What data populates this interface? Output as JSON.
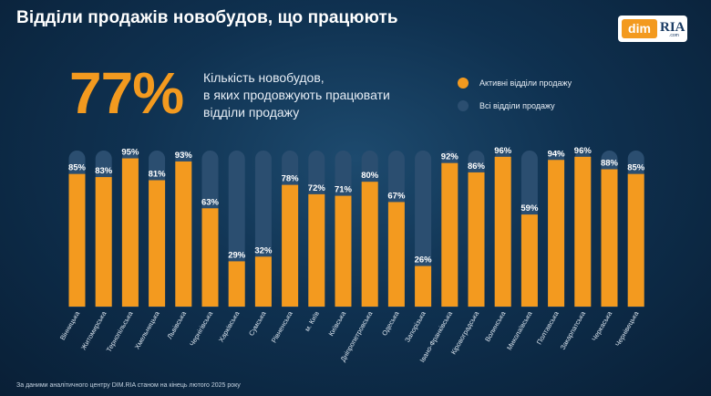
{
  "header": {
    "title": "Відділи продажів новобудов, що працюють"
  },
  "logo": {
    "dim_text": "dim",
    "ria_text": "RIA",
    "com_text": ".com"
  },
  "summary": {
    "big_value": "77%",
    "lines": [
      "Кількість новобудов,",
      "в яких продовжують працювати",
      "відділи продажу"
    ]
  },
  "colors": {
    "active": "#f39a1f",
    "all": "#2b4e70",
    "background": "#0f3150",
    "text": "#ffffff"
  },
  "chart_data": {
    "type": "bar",
    "categories": [
      "Вінницька",
      "Житомирська",
      "Тернопільська",
      "Хмельницька",
      "Львівська",
      "Чернігівська",
      "Харківська",
      "Сумська",
      "Рівненська",
      "м. Київ",
      "Київська",
      "Дніпропетровська",
      "Одеська",
      "Запорізька",
      "Івано-Франківська",
      "Кіровоградська",
      "Волинська",
      "Миколаївська",
      "Полтавська",
      "Закарпатська",
      "Черкаська",
      "Чернівецька"
    ],
    "series": [
      {
        "name": "Активні відділи продажу",
        "values": [
          85,
          83,
          95,
          81,
          93,
          63,
          29,
          32,
          78,
          72,
          71,
          80,
          67,
          26,
          92,
          86,
          96,
          59,
          94,
          96,
          88,
          85
        ],
        "labels": [
          "85%",
          "83%",
          "95%",
          "81%",
          "93%",
          "63%",
          "29%",
          "32%",
          "78%",
          "72%",
          "71%",
          "80%",
          "67%",
          "26%",
          "92%",
          "86%",
          "96%",
          "59%",
          "94%",
          "96%",
          "88%",
          "85%"
        ]
      },
      {
        "name": "Всі відділи продажу",
        "values": [
          100,
          100,
          100,
          100,
          100,
          100,
          100,
          100,
          100,
          100,
          100,
          100,
          100,
          100,
          100,
          100,
          100,
          100,
          100,
          100,
          100,
          100
        ]
      }
    ],
    "ylim": [
      0,
      100
    ],
    "grid": false,
    "legend_position": "top-right"
  },
  "footnote": "За даними аналітичного центру DIM.RIA станом на кінець лютого 2025 року"
}
